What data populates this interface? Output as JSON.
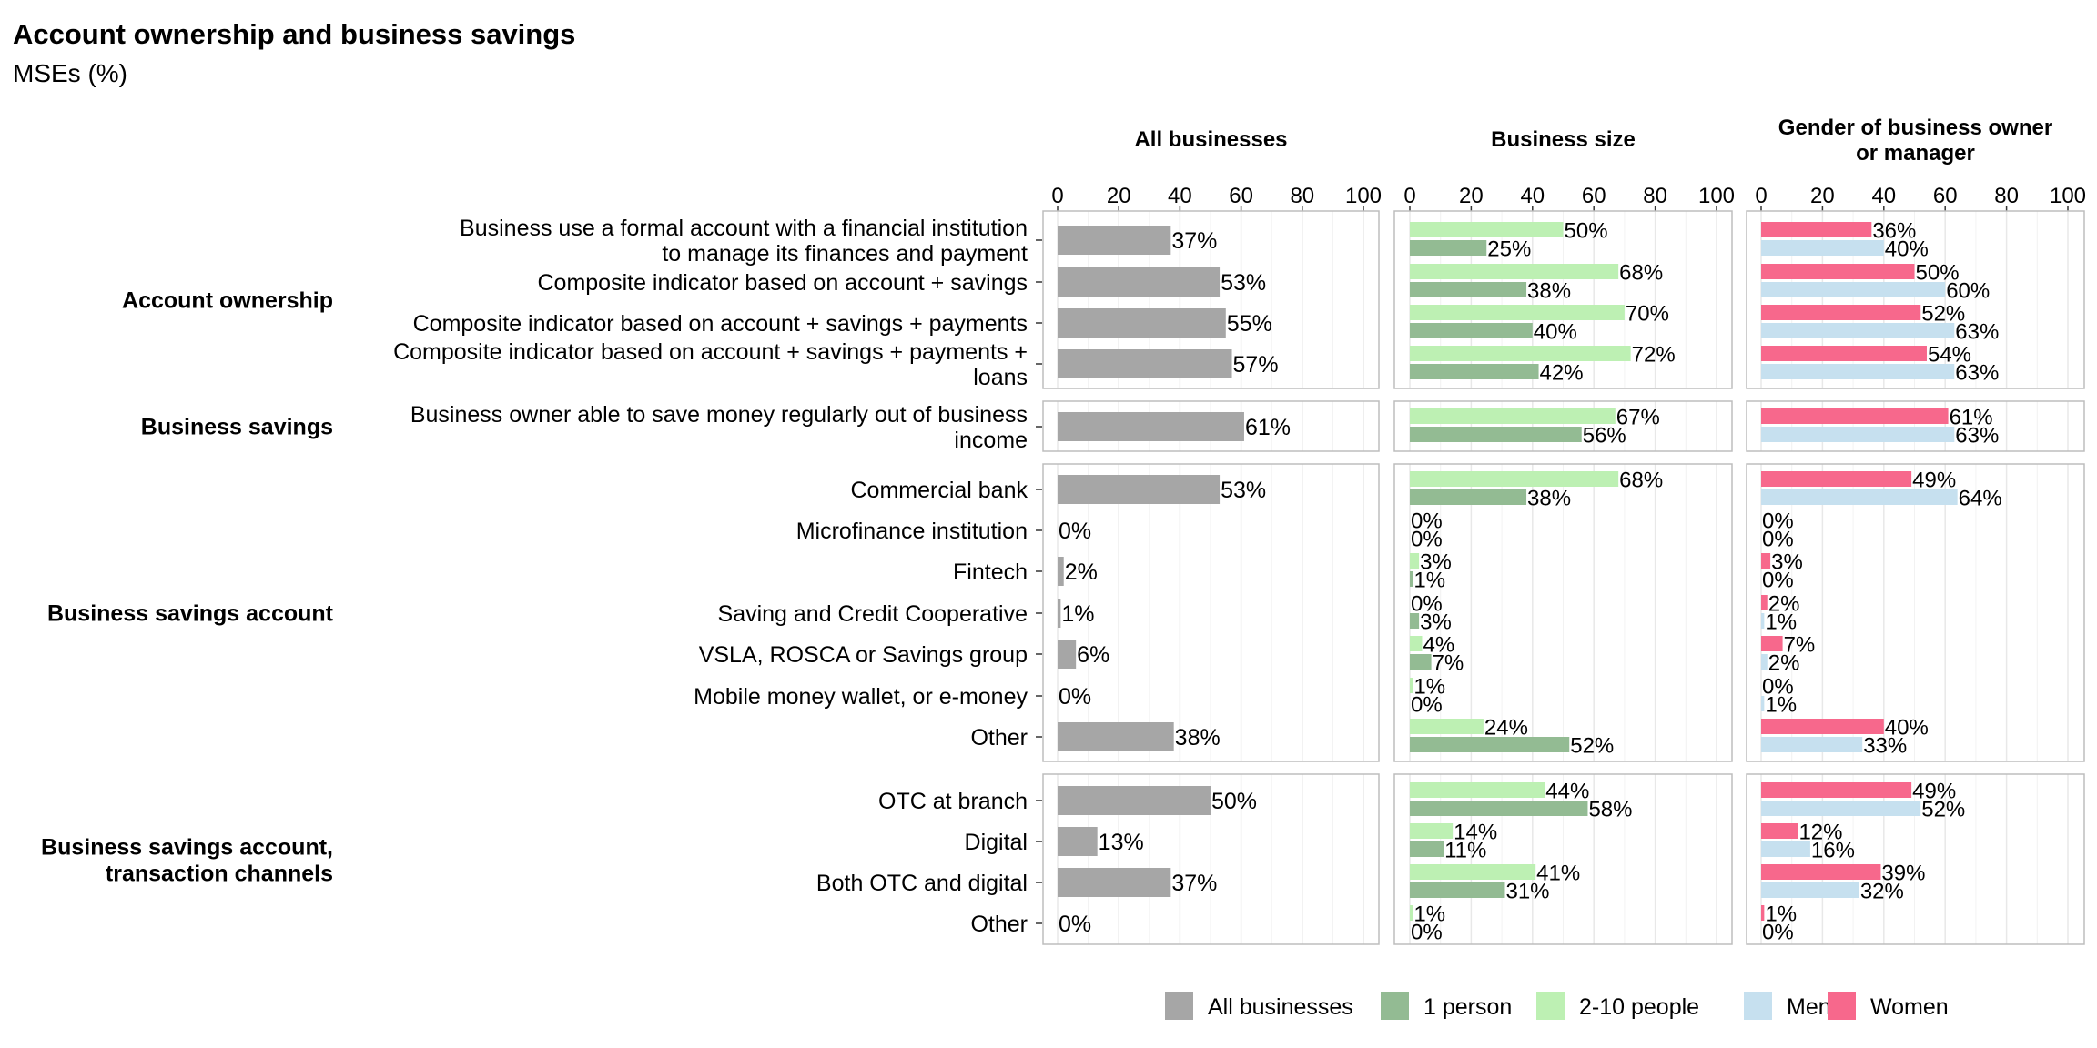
{
  "title": "Account ownership and business savings",
  "subtitle": "MSEs (%)",
  "chart_data": {
    "type": "bar",
    "orientation": "horizontal",
    "xlim": [
      0,
      100
    ],
    "x_ticks": [
      "0",
      "20",
      "40",
      "60",
      "80",
      "100"
    ],
    "value_suffix": "%",
    "panels": [
      {
        "id": "all",
        "title": "All businesses"
      },
      {
        "id": "size",
        "title": "Business size"
      },
      {
        "id": "gender",
        "title": "Gender of business owner or manager"
      }
    ],
    "legend": [
      {
        "name": "All businesses",
        "color": "#a6a6a6"
      },
      {
        "name": "1 person",
        "color": "#93bb93"
      },
      {
        "name": "2-10 people",
        "color": "#bdf0b3"
      },
      {
        "name": "Men",
        "color": "#c6e0ef"
      },
      {
        "name": "Women",
        "color": "#f7688c"
      }
    ],
    "legend_position": "bottom",
    "groups": [
      {
        "name": "Account ownership",
        "items": [
          {
            "label": "Business use a formal account with a financial institution to manage its finances and payment",
            "all": 37,
            "people_2_10": 50,
            "person_1": 25,
            "women": 36,
            "men": 40
          },
          {
            "label": "Composite indicator based on account + savings",
            "all": 53,
            "people_2_10": 68,
            "person_1": 38,
            "women": 50,
            "men": 60
          },
          {
            "label": "Composite indicator based on account + savings + payments",
            "all": 55,
            "people_2_10": 70,
            "person_1": 40,
            "women": 52,
            "men": 63
          },
          {
            "label": "Composite indicator based on account + savings + payments + loans",
            "all": 57,
            "people_2_10": 72,
            "person_1": 42,
            "women": 54,
            "men": 63
          }
        ]
      },
      {
        "name": "Business savings",
        "items": [
          {
            "label": "Business owner able to save money regularly out of business income",
            "all": 61,
            "people_2_10": 67,
            "person_1": 56,
            "women": 61,
            "men": 63
          }
        ]
      },
      {
        "name": "Business savings account",
        "items": [
          {
            "label": "Commercial bank",
            "all": 53,
            "people_2_10": 68,
            "person_1": 38,
            "women": 49,
            "men": 64
          },
          {
            "label": "Microfinance institution",
            "all": 0,
            "people_2_10": 0,
            "person_1": 0,
            "women": 0,
            "men": 0
          },
          {
            "label": "Fintech",
            "all": 2,
            "people_2_10": 3,
            "person_1": 1,
            "women": 3,
            "men": 0
          },
          {
            "label": "Saving and Credit Cooperative",
            "all": 1,
            "people_2_10": 0,
            "person_1": 3,
            "women": 2,
            "men": 1
          },
          {
            "label": "VSLA, ROSCA or Savings group",
            "all": 6,
            "people_2_10": 4,
            "person_1": 7,
            "women": 7,
            "men": 2
          },
          {
            "label": "Mobile money wallet, or e-money",
            "all": 0,
            "people_2_10": 1,
            "person_1": 0,
            "women": 0,
            "men": 1
          },
          {
            "label": "Other",
            "all": 38,
            "people_2_10": 24,
            "person_1": 52,
            "women": 40,
            "men": 33
          }
        ]
      },
      {
        "name": "Business savings account, transaction channels",
        "items": [
          {
            "label": "OTC at branch",
            "all": 50,
            "people_2_10": 44,
            "person_1": 58,
            "women": 49,
            "men": 52
          },
          {
            "label": "Digital",
            "all": 13,
            "people_2_10": 14,
            "person_1": 11,
            "women": 12,
            "men": 16
          },
          {
            "label": "Both OTC and digital",
            "all": 37,
            "people_2_10": 41,
            "person_1": 31,
            "women": 39,
            "men": 32
          },
          {
            "label": "Other",
            "all": 0,
            "people_2_10": 1,
            "person_1": 0,
            "women": 1,
            "men": 0
          }
        ]
      }
    ]
  }
}
